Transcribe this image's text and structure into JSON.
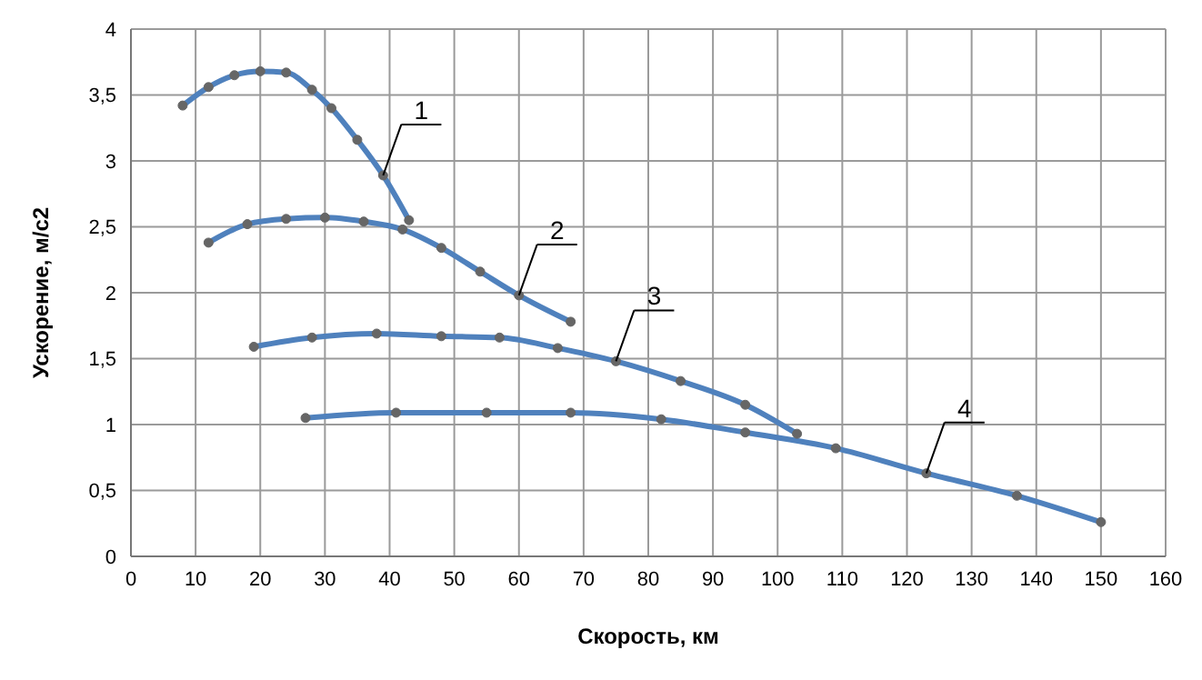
{
  "chart_data": {
    "type": "line",
    "xlabel": "Скорость, км",
    "ylabel": "Ускорение, м/с2",
    "xlim": [
      0,
      160
    ],
    "xticks": [
      0,
      10,
      20,
      30,
      40,
      50,
      60,
      70,
      80,
      90,
      100,
      110,
      120,
      130,
      140,
      150,
      160
    ],
    "ylim": [
      0,
      4
    ],
    "yticks": [
      0,
      {
        "value": 0.5,
        "label": "0,5"
      },
      1,
      {
        "value": 1.5,
        "label": "1,5"
      },
      2,
      {
        "value": 2.5,
        "label": "2,5"
      },
      3,
      {
        "value": 3.5,
        "label": "3,5"
      },
      4
    ],
    "grid": true,
    "marker": "circle",
    "line_style": "solid",
    "series": [
      {
        "name": "1",
        "color": "#4f81bd",
        "x": [
          8,
          12,
          16,
          20,
          24,
          28,
          31,
          35,
          39,
          43
        ],
        "values": [
          3.42,
          3.56,
          3.65,
          3.68,
          3.67,
          3.54,
          3.4,
          3.16,
          2.89,
          2.55
        ]
      },
      {
        "name": "2",
        "color": "#4f81bd",
        "x": [
          12,
          18,
          24,
          30,
          36,
          42,
          48,
          54,
          60,
          68
        ],
        "values": [
          2.38,
          2.52,
          2.56,
          2.57,
          2.54,
          2.48,
          2.34,
          2.16,
          1.98,
          1.78
        ]
      },
      {
        "name": "3",
        "color": "#4f81bd",
        "x": [
          19,
          28,
          38,
          48,
          57,
          66,
          75,
          85,
          95,
          103
        ],
        "values": [
          1.59,
          1.66,
          1.69,
          1.67,
          1.66,
          1.58,
          1.48,
          1.33,
          1.15,
          0.93
        ]
      },
      {
        "name": "4",
        "color": "#4f81bd",
        "x": [
          27,
          41,
          55,
          68,
          82,
          95,
          109,
          123,
          137,
          150
        ],
        "values": [
          1.05,
          1.09,
          1.09,
          1.09,
          1.04,
          0.94,
          0.82,
          0.63,
          0.46,
          0.26
        ]
      }
    ]
  }
}
